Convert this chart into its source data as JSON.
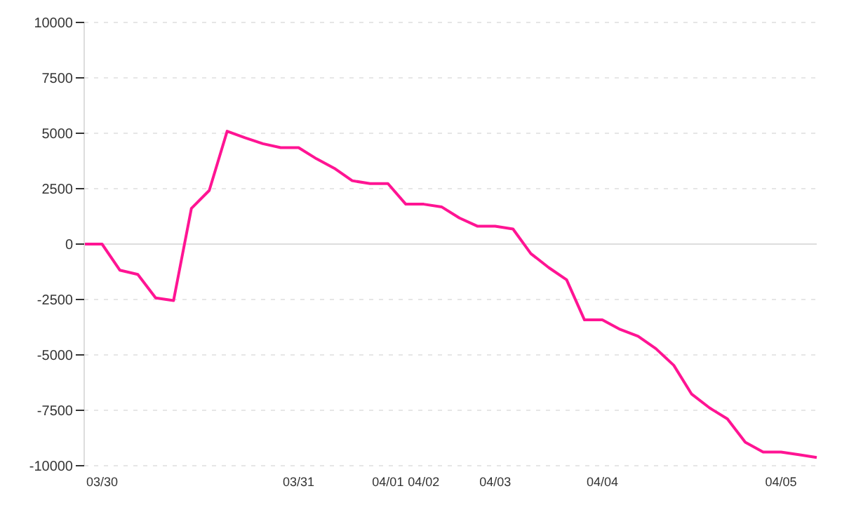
{
  "chart_data": {
    "type": "line",
    "categories": [
      null,
      "03/30",
      null,
      null,
      null,
      null,
      null,
      null,
      null,
      null,
      null,
      null,
      "03/31",
      null,
      null,
      null,
      null,
      "04/01",
      null,
      "04/02",
      null,
      null,
      null,
      "04/03",
      null,
      null,
      null,
      null,
      null,
      "04/04",
      null,
      null,
      null,
      null,
      null,
      null,
      null,
      null,
      null,
      "04/05",
      null,
      null
    ],
    "series": [
      {
        "color": "#ff1493",
        "values": [
          0,
          0,
          -1180,
          -1370,
          -2430,
          -2550,
          1610,
          2420,
          5090,
          4800,
          4530,
          4350,
          4350,
          3850,
          3420,
          2860,
          2730,
          2730,
          1800,
          1800,
          1680,
          1180,
          810,
          810,
          680,
          -430,
          -1060,
          -1610,
          -3420,
          -3420,
          -3850,
          -4160,
          -4720,
          -5470,
          -6770,
          -7390,
          -7890,
          -8940,
          -9380,
          -9380,
          -9500,
          -9630
        ]
      }
    ],
    "ylim": [
      -10000,
      10000
    ],
    "yticks": [
      -10000,
      -7500,
      -5000,
      -2500,
      0,
      2500,
      5000,
      7500,
      10000
    ],
    "grid": "y",
    "legend": false,
    "marker": "none",
    "line_style": "solid",
    "ref_lines": [
      {
        "axis": "y",
        "value": 0,
        "color": "#dddddd"
      }
    ]
  }
}
